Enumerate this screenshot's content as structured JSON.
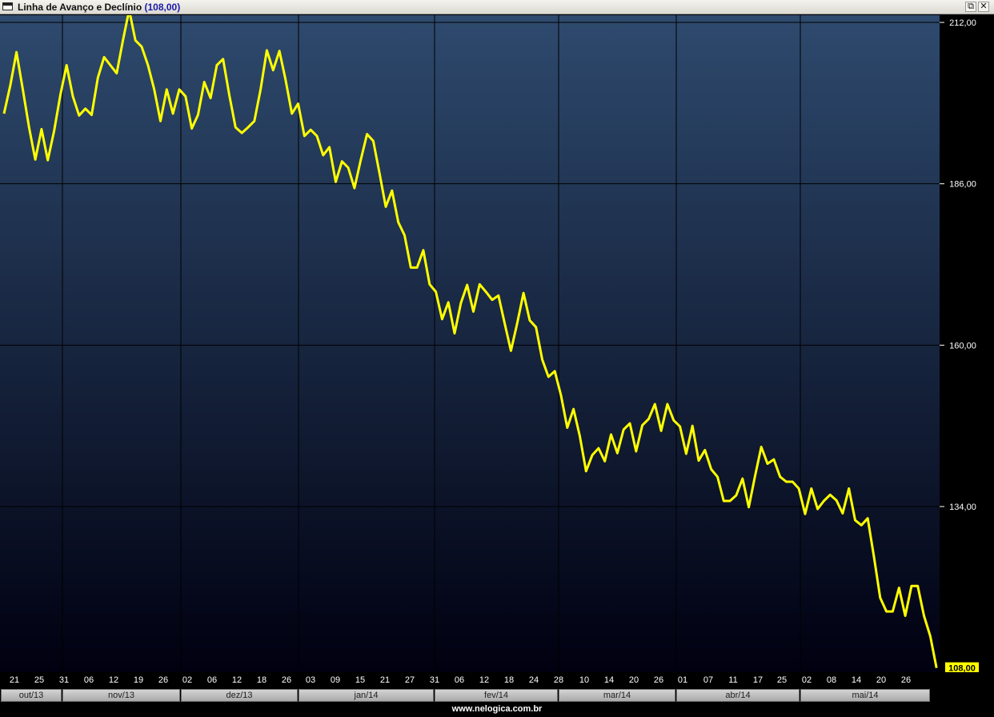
{
  "window": {
    "title": "Linha de Avanço e Declínio",
    "title_value": "(108,00)",
    "restore_icon": "restore-window-icon",
    "close_icon": "close-icon",
    "restore_glyph": "⧉",
    "close_glyph": "✕"
  },
  "footer": {
    "text": "www.nelogica.com.br"
  },
  "colors": {
    "background_top": "#2e4a6e",
    "background_bottom": "#000010",
    "line": "#ffff00",
    "grid": "#000000",
    "last_value_badge": "#ffff00"
  },
  "chart_data": {
    "type": "line",
    "title": "Linha de Avanço e Declínio",
    "last_value_label": "108,00",
    "y_ticks": [
      {
        "value": 212,
        "label": "212,00"
      },
      {
        "value": 186,
        "label": "186,00"
      },
      {
        "value": 160,
        "label": "160,00"
      },
      {
        "value": 134,
        "label": "134,00"
      }
    ],
    "ylim": [
      107,
      213.5
    ],
    "grid": true,
    "month_separators": [
      "31/out/13",
      "02/dez/13",
      "02/jan/14",
      "31/jan/14",
      "28/fev/14",
      "01/abr/14",
      "02/mai/14"
    ],
    "day_labels": [
      "21",
      "25",
      "31",
      "06",
      "12",
      "19",
      "26",
      "02",
      "06",
      "12",
      "18",
      "26",
      "03",
      "09",
      "15",
      "21",
      "27",
      "31",
      "06",
      "12",
      "18",
      "24",
      "28",
      "10",
      "14",
      "20",
      "26",
      "01",
      "07",
      "11",
      "17",
      "25",
      "02",
      "08",
      "14",
      "20",
      "26"
    ],
    "months": [
      "out/13",
      "nov/13",
      "dez/13",
      "jan/14",
      "fev/14",
      "mar/14",
      "abr/14",
      "mai/14"
    ],
    "series": [
      {
        "values": [
          197.3,
          201.8,
          207.2,
          201.2,
          195.1,
          189.9,
          194.8,
          189.8,
          194.5,
          200.3,
          205.1,
          200.1,
          197.0,
          198.1,
          197.1,
          203.1,
          206.4,
          205.1,
          203.8,
          209.1,
          214.0,
          209.1,
          208.1,
          205.1,
          201.2,
          196.1,
          201.2,
          197.3,
          201.2,
          200.1,
          194.9,
          197.1,
          202.4,
          199.8,
          205.1,
          206.1,
          200.3,
          195.1,
          194.2,
          195.1,
          196.1,
          201.2,
          207.5,
          204.3,
          207.4,
          202.7,
          197.3,
          198.9,
          193.7,
          194.7,
          193.7,
          190.6,
          191.9,
          186.3,
          189.6,
          188.6,
          185.3,
          189.8,
          194.0,
          192.9,
          187.7,
          182.3,
          184.9,
          179.8,
          177.7,
          172.5,
          172.5,
          175.3,
          169.8,
          168.6,
          164.2,
          166.9,
          161.9,
          166.8,
          169.7,
          165.4,
          169.8,
          168.6,
          167.3,
          168.0,
          163.5,
          159.1,
          163.5,
          168.4,
          164.0,
          162.9,
          157.7,
          154.9,
          155.8,
          151.9,
          146.7,
          149.7,
          145.4,
          139.7,
          142.3,
          143.4,
          141.3,
          145.6,
          142.6,
          146.4,
          147.4,
          142.9,
          147.1,
          148.1,
          150.5,
          146.2,
          150.5,
          147.9,
          146.9,
          142.5,
          147.0,
          141.4,
          143.1,
          140.0,
          138.8,
          134.9,
          134.9,
          135.8,
          138.5,
          133.9,
          138.9,
          143.6,
          140.9,
          141.6,
          138.8,
          138.0,
          138.0,
          136.9,
          132.8,
          136.9,
          133.6,
          134.9,
          135.9,
          135.0,
          132.9,
          136.9,
          131.8,
          131.0,
          132.1,
          125.9,
          119.3,
          117.1,
          117.1,
          120.9,
          116.4,
          121.2,
          121.2,
          116.4,
          113.1,
          108.0
        ]
      }
    ]
  }
}
